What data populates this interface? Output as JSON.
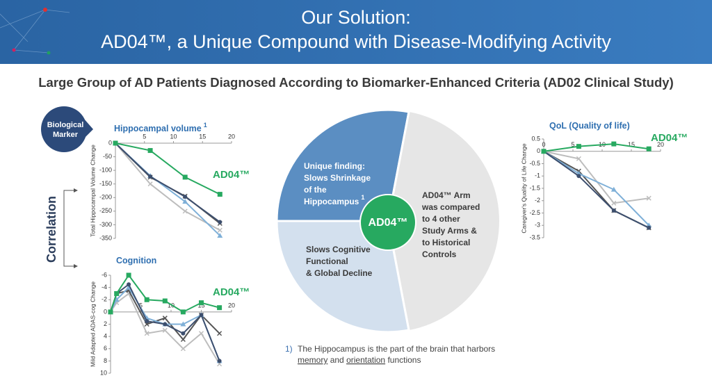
{
  "header": {
    "title_lines": [
      "Our Solution:",
      "AD04™, a Unique Compound with Disease-Modifying Activity"
    ],
    "subtitle": "Large Group of AD Patients Diagnosed According to Biomarker-Enhanced Criteria (AD02 Clinical Study)"
  },
  "left": {
    "marker_bubble": [
      "Biological",
      "Marker"
    ],
    "correlation": "Correlation"
  },
  "diagram": {
    "top_left": [
      "Unique finding:",
      "Slows Shrinkage",
      "of the",
      "Hippocampus"
    ],
    "top_left_note": "1",
    "bottom_left": [
      "Slows Cognitive",
      "Functional",
      "& Global Decline"
    ],
    "right": [
      "AD04™ Arm",
      "was compared",
      "to 4 other",
      "Study Arms &",
      "to Historical",
      "Controls"
    ],
    "center": "AD04™"
  },
  "footnote": {
    "number": "1)",
    "line1": "The Hippocampus is the part of the brain that harbors",
    "line2": [
      "memory",
      "and",
      "orientation",
      "functions"
    ]
  },
  "chart_data": [
    {
      "type": "line",
      "title": "Hippocampal volume",
      "title_note": "1",
      "y_label": "Total Hippocampal Volume Change",
      "annotation": "AD04™",
      "x": [
        0,
        6,
        12,
        18
      ],
      "xlim": [
        0,
        20
      ],
      "xticks": [
        5,
        10,
        15,
        20
      ],
      "ylim": [
        -350,
        0
      ],
      "yticks": [
        0,
        -50,
        -100,
        -150,
        -200,
        -250,
        -300,
        -350
      ],
      "series": [
        {
          "color": "#bdbdbd",
          "marker": "x",
          "values": [
            0,
            -150,
            -250,
            -320
          ]
        },
        {
          "color": "#555555",
          "marker": "x",
          "values": [
            0,
            -125,
            -195,
            -295
          ]
        },
        {
          "color": "#7fb0d8",
          "marker": "triangle",
          "values": [
            0,
            -120,
            -215,
            -340
          ]
        },
        {
          "color": "#3d4f6e",
          "marker": "circle",
          "values": [
            0,
            -123,
            -197,
            -290
          ]
        },
        {
          "color": "#27a960",
          "marker": "square",
          "values": [
            0,
            -27,
            -125,
            -188
          ]
        }
      ]
    },
    {
      "type": "line",
      "title": "Cognition",
      "y_label": "Mild Adapted ADAS-cog Change",
      "annotation": "AD04™",
      "x": [
        0,
        1,
        3,
        6,
        9,
        12,
        15,
        18
      ],
      "xlim": [
        0,
        20
      ],
      "xticks": [
        5,
        10,
        15,
        20
      ],
      "ylim": [
        10,
        -6
      ],
      "yticks": [
        -6,
        -4,
        -2,
        0,
        2,
        4,
        6,
        8,
        10
      ],
      "series": [
        {
          "color": "#bdbdbd",
          "marker": "x",
          "values": [
            0,
            -1.5,
            -3,
            3.5,
            3,
            6,
            3.5,
            8.5
          ]
        },
        {
          "color": "#555555",
          "marker": "x",
          "values": [
            0,
            -3,
            -3.5,
            2,
            1,
            4.5,
            0.5,
            3.5
          ]
        },
        {
          "color": "#7fb0d8",
          "marker": "triangle",
          "values": [
            0,
            -2,
            -4,
            1,
            2,
            2,
            0.5,
            8
          ]
        },
        {
          "color": "#3d4f6e",
          "marker": "circle",
          "values": [
            0,
            -3,
            -4.5,
            1.5,
            2,
            3.5,
            0.5,
            8
          ]
        },
        {
          "color": "#27a960",
          "marker": "square",
          "values": [
            0,
            -3,
            -6,
            -2,
            -1.8,
            0,
            -1.5,
            -0.7
          ]
        }
      ]
    },
    {
      "type": "line",
      "title": "QoL (Quality of life)",
      "y_label": "Caregiver's Quality of Life Change",
      "annotation": "AD04™",
      "x": [
        0,
        6,
        12,
        18
      ],
      "xlim": [
        0,
        20
      ],
      "xticks": [
        0,
        5,
        10,
        15,
        20
      ],
      "ylim": [
        -3.5,
        0.5
      ],
      "yticks": [
        0.5,
        0,
        -0.5,
        -1,
        -1.5,
        -2,
        -2.5,
        -3,
        -3.5
      ],
      "series": [
        {
          "color": "#bdbdbd",
          "marker": "x",
          "values": [
            0,
            -0.3,
            -2.1,
            -1.9
          ]
        },
        {
          "color": "#555555",
          "marker": "x",
          "values": [
            0,
            -0.8,
            -2.4,
            -3.1
          ]
        },
        {
          "color": "#7fb0d8",
          "marker": "triangle",
          "values": [
            0,
            -0.9,
            -1.55,
            -3
          ]
        },
        {
          "color": "#3d4f6e",
          "marker": "circle",
          "values": [
            0,
            -1,
            -2.4,
            -3.1
          ]
        },
        {
          "color": "#27a960",
          "marker": "square",
          "values": [
            0,
            0.2,
            0.3,
            0.1
          ]
        }
      ]
    }
  ]
}
